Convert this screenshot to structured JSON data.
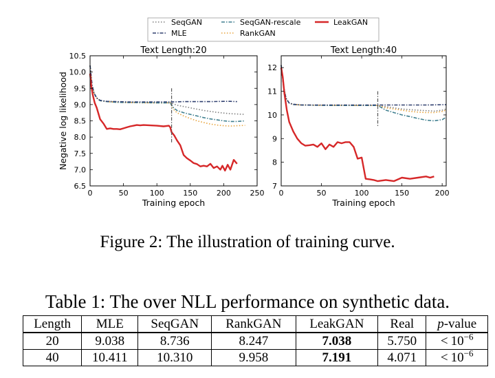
{
  "legend": {
    "entries": [
      {
        "key": "seqgan",
        "label": "SeqGAN",
        "color": "#7f7f7f",
        "dash": "1.5,2.5",
        "width": 1.6
      },
      {
        "key": "seqgan_rescale",
        "label": "SeqGAN-rescale",
        "color": "#3f7f8f",
        "dash": "5,2,1.5,2",
        "width": 1.6
      },
      {
        "key": "leakgan",
        "label": "LeakGAN",
        "color": "#d62728",
        "dash": "",
        "width": 2.4
      },
      {
        "key": "mle",
        "label": "MLE",
        "color": "#2f3f6f",
        "dash": "5,2,1.5,2",
        "width": 1.6
      },
      {
        "key": "rankgan",
        "label": "RankGAN",
        "color": "#e8a33a",
        "dash": "1.5,2.5",
        "width": 1.6
      }
    ]
  },
  "chart_data": [
    {
      "type": "line",
      "title": "Text Length:20",
      "xlabel": "Training epoch",
      "ylabel": "Negative log likelihood",
      "xlim": [
        0,
        250
      ],
      "ylim": [
        6.5,
        10.5
      ],
      "xticks": [
        0,
        50,
        100,
        150,
        200,
        250
      ],
      "yticks": [
        6.5,
        7.0,
        7.5,
        8.0,
        8.5,
        9.0,
        9.5,
        10.0,
        10.5
      ],
      "ytick_labels": [
        "6.5",
        "7.0",
        "7.5",
        "8.0",
        "8.5",
        "9.0",
        "9.5",
        "10.0",
        "10.5"
      ],
      "vline": {
        "x": 122,
        "y0": 7.8,
        "y1": 9.5
      },
      "series": [
        {
          "key": "seqgan",
          "name": "SeqGAN",
          "x": [
            0,
            3,
            6,
            10,
            15,
            25,
            40,
            60,
            80,
            100,
            120,
            125,
            130,
            140,
            150,
            160,
            170,
            180,
            190,
            200,
            210,
            220,
            232
          ],
          "y": [
            10.2,
            9.6,
            9.35,
            9.2,
            9.12,
            9.1,
            9.08,
            9.07,
            9.07,
            9.06,
            9.06,
            9.02,
            8.98,
            8.94,
            8.9,
            8.86,
            8.82,
            8.79,
            8.76,
            8.74,
            8.72,
            8.71,
            8.7
          ]
        },
        {
          "key": "seqgan_rescale",
          "name": "SeqGAN-rescale",
          "x": [
            0,
            3,
            6,
            10,
            15,
            25,
            40,
            60,
            80,
            100,
            120,
            125,
            130,
            140,
            150,
            160,
            170,
            180,
            190,
            200,
            210,
            220,
            232
          ],
          "y": [
            10.2,
            9.6,
            9.35,
            9.2,
            9.12,
            9.09,
            9.07,
            9.06,
            9.06,
            9.05,
            9.05,
            8.9,
            8.82,
            8.75,
            8.7,
            8.65,
            8.6,
            8.56,
            8.53,
            8.5,
            8.48,
            8.48,
            8.5
          ]
        },
        {
          "key": "mle",
          "name": "MLE",
          "x": [
            0,
            3,
            6,
            10,
            15,
            25,
            40,
            60,
            80,
            100,
            120,
            140,
            160,
            180,
            200,
            210,
            220
          ],
          "y": [
            10.2,
            9.6,
            9.35,
            9.2,
            9.13,
            9.1,
            9.09,
            9.08,
            9.08,
            9.08,
            9.08,
            9.09,
            9.09,
            9.09,
            9.1,
            9.1,
            9.09
          ]
        },
        {
          "key": "rankgan",
          "name": "RankGAN",
          "x": [
            0,
            3,
            6,
            10,
            15,
            25,
            40,
            60,
            80,
            100,
            120,
            125,
            130,
            140,
            150,
            160,
            170,
            180,
            190,
            200,
            210,
            220,
            232
          ],
          "y": [
            10.2,
            9.6,
            9.35,
            9.2,
            9.12,
            9.09,
            9.07,
            9.06,
            9.05,
            9.05,
            9.05,
            8.85,
            8.75,
            8.65,
            8.57,
            8.5,
            8.45,
            8.4,
            8.37,
            8.35,
            8.34,
            8.35,
            8.36
          ]
        },
        {
          "key": "leakgan",
          "name": "LeakGAN",
          "x": [
            0,
            2,
            4,
            7,
            10,
            15,
            20,
            25,
            30,
            35,
            40,
            45,
            50,
            55,
            60,
            65,
            70,
            75,
            80,
            90,
            100,
            110,
            118,
            120,
            122,
            126,
            130,
            135,
            140,
            145,
            150,
            155,
            160,
            165,
            170,
            175,
            180,
            185,
            190,
            195,
            198,
            202,
            206,
            210,
            215,
            220
          ],
          "y": [
            9.95,
            9.55,
            9.3,
            9.05,
            8.9,
            8.55,
            8.42,
            8.25,
            8.27,
            8.25,
            8.25,
            8.24,
            8.27,
            8.3,
            8.33,
            8.35,
            8.37,
            8.36,
            8.37,
            8.36,
            8.35,
            8.33,
            8.35,
            8.3,
            8.15,
            8.05,
            7.9,
            7.75,
            7.45,
            7.35,
            7.28,
            7.2,
            7.17,
            7.1,
            7.12,
            7.1,
            7.18,
            7.05,
            7.1,
            7.0,
            7.12,
            6.97,
            7.15,
            7.0,
            7.3,
            7.18
          ]
        }
      ]
    },
    {
      "type": "line",
      "title": "Text Length:40",
      "xlabel": "Training epoch",
      "ylabel": "",
      "xlim": [
        0,
        205
      ],
      "ylim": [
        7,
        12.5
      ],
      "xticks": [
        0,
        50,
        100,
        150,
        200
      ],
      "yticks": [
        7,
        8,
        9,
        10,
        11,
        12
      ],
      "ytick_labels": [
        "7",
        "8",
        "9",
        "10",
        "11",
        "12"
      ],
      "vline": {
        "x": 120,
        "y0": 9.5,
        "y1": 11
      },
      "series": [
        {
          "key": "seqgan",
          "name": "SeqGAN",
          "x": [
            0,
            3,
            6,
            10,
            15,
            25,
            40,
            60,
            80,
            100,
            120,
            130,
            140,
            150,
            160,
            170,
            180,
            190,
            200,
            205
          ],
          "y": [
            12.1,
            11.2,
            10.7,
            10.5,
            10.45,
            10.42,
            10.41,
            10.41,
            10.4,
            10.4,
            10.4,
            10.35,
            10.3,
            10.25,
            10.22,
            10.2,
            10.18,
            10.16,
            10.2,
            10.25
          ]
        },
        {
          "key": "seqgan_rescale",
          "name": "SeqGAN-rescale",
          "x": [
            0,
            3,
            6,
            10,
            15,
            25,
            40,
            60,
            80,
            100,
            120,
            130,
            140,
            150,
            160,
            170,
            180,
            190,
            200,
            205
          ],
          "y": [
            12.1,
            11.2,
            10.7,
            10.5,
            10.44,
            10.42,
            10.41,
            10.4,
            10.4,
            10.4,
            10.4,
            10.2,
            10.1,
            10.0,
            9.93,
            9.85,
            9.78,
            9.75,
            9.8,
            9.9
          ]
        },
        {
          "key": "mle",
          "name": "MLE",
          "x": [
            0,
            3,
            6,
            10,
            15,
            25,
            40,
            60,
            80,
            100,
            120,
            140,
            160,
            180,
            200,
            205
          ],
          "y": [
            12.1,
            11.2,
            10.7,
            10.5,
            10.45,
            10.42,
            10.42,
            10.42,
            10.42,
            10.42,
            10.42,
            10.42,
            10.42,
            10.42,
            10.43,
            10.43
          ]
        },
        {
          "key": "rankgan",
          "name": "RankGAN",
          "x": [
            0,
            3,
            6,
            10,
            15,
            25,
            40,
            60,
            80,
            100,
            120,
            130,
            140,
            150,
            160,
            170,
            180,
            190,
            200,
            205
          ],
          "y": [
            12.1,
            11.2,
            10.7,
            10.5,
            10.44,
            10.42,
            10.41,
            10.41,
            10.4,
            10.4,
            10.4,
            10.3,
            10.25,
            10.2,
            10.15,
            10.12,
            10.1,
            10.1,
            10.15,
            10.2
          ]
        },
        {
          "key": "leakgan",
          "name": "LeakGAN",
          "x": [
            0,
            2,
            4,
            7,
            10,
            15,
            20,
            25,
            30,
            35,
            40,
            45,
            50,
            55,
            60,
            65,
            70,
            75,
            80,
            85,
            90,
            95,
            100,
            105,
            110,
            115,
            120,
            130,
            140,
            150,
            160,
            170,
            180,
            185,
            190
          ],
          "y": [
            12.0,
            11.6,
            10.9,
            10.2,
            9.7,
            9.3,
            9.0,
            8.8,
            8.7,
            8.72,
            8.75,
            8.65,
            8.8,
            8.55,
            8.75,
            8.65,
            8.85,
            8.8,
            8.85,
            8.85,
            8.65,
            8.15,
            8.2,
            7.3,
            7.28,
            7.25,
            7.2,
            7.25,
            7.2,
            7.35,
            7.3,
            7.35,
            7.4,
            7.35,
            7.4
          ]
        }
      ]
    }
  ],
  "figure_caption": "Figure 2: The illustration of training curve.",
  "table_caption": "Table 1: The over NLL performance on synthetic data.",
  "table": {
    "headers": {
      "length": "Length",
      "mle": "MLE",
      "seqgan": "SeqGAN",
      "rankgan": "RankGAN",
      "leakgan": "LeakGAN",
      "real": "Real",
      "pvalue_p": "p",
      "pvalue_suffix": "-value"
    },
    "rows": [
      {
        "length": "20",
        "mle": "9.038",
        "seqgan": "8.736",
        "rankgan": "8.247",
        "leakgan": "7.038",
        "real": "5.750",
        "pvalue_lt": "<",
        "pvalue_base": "10",
        "pvalue_exp": "−6"
      },
      {
        "length": "40",
        "mle": "10.411",
        "seqgan": "10.310",
        "rankgan": "9.958",
        "leakgan": "7.191",
        "real": "4.071",
        "pvalue_lt": "<",
        "pvalue_base": "10",
        "pvalue_exp": "−6"
      }
    ]
  }
}
